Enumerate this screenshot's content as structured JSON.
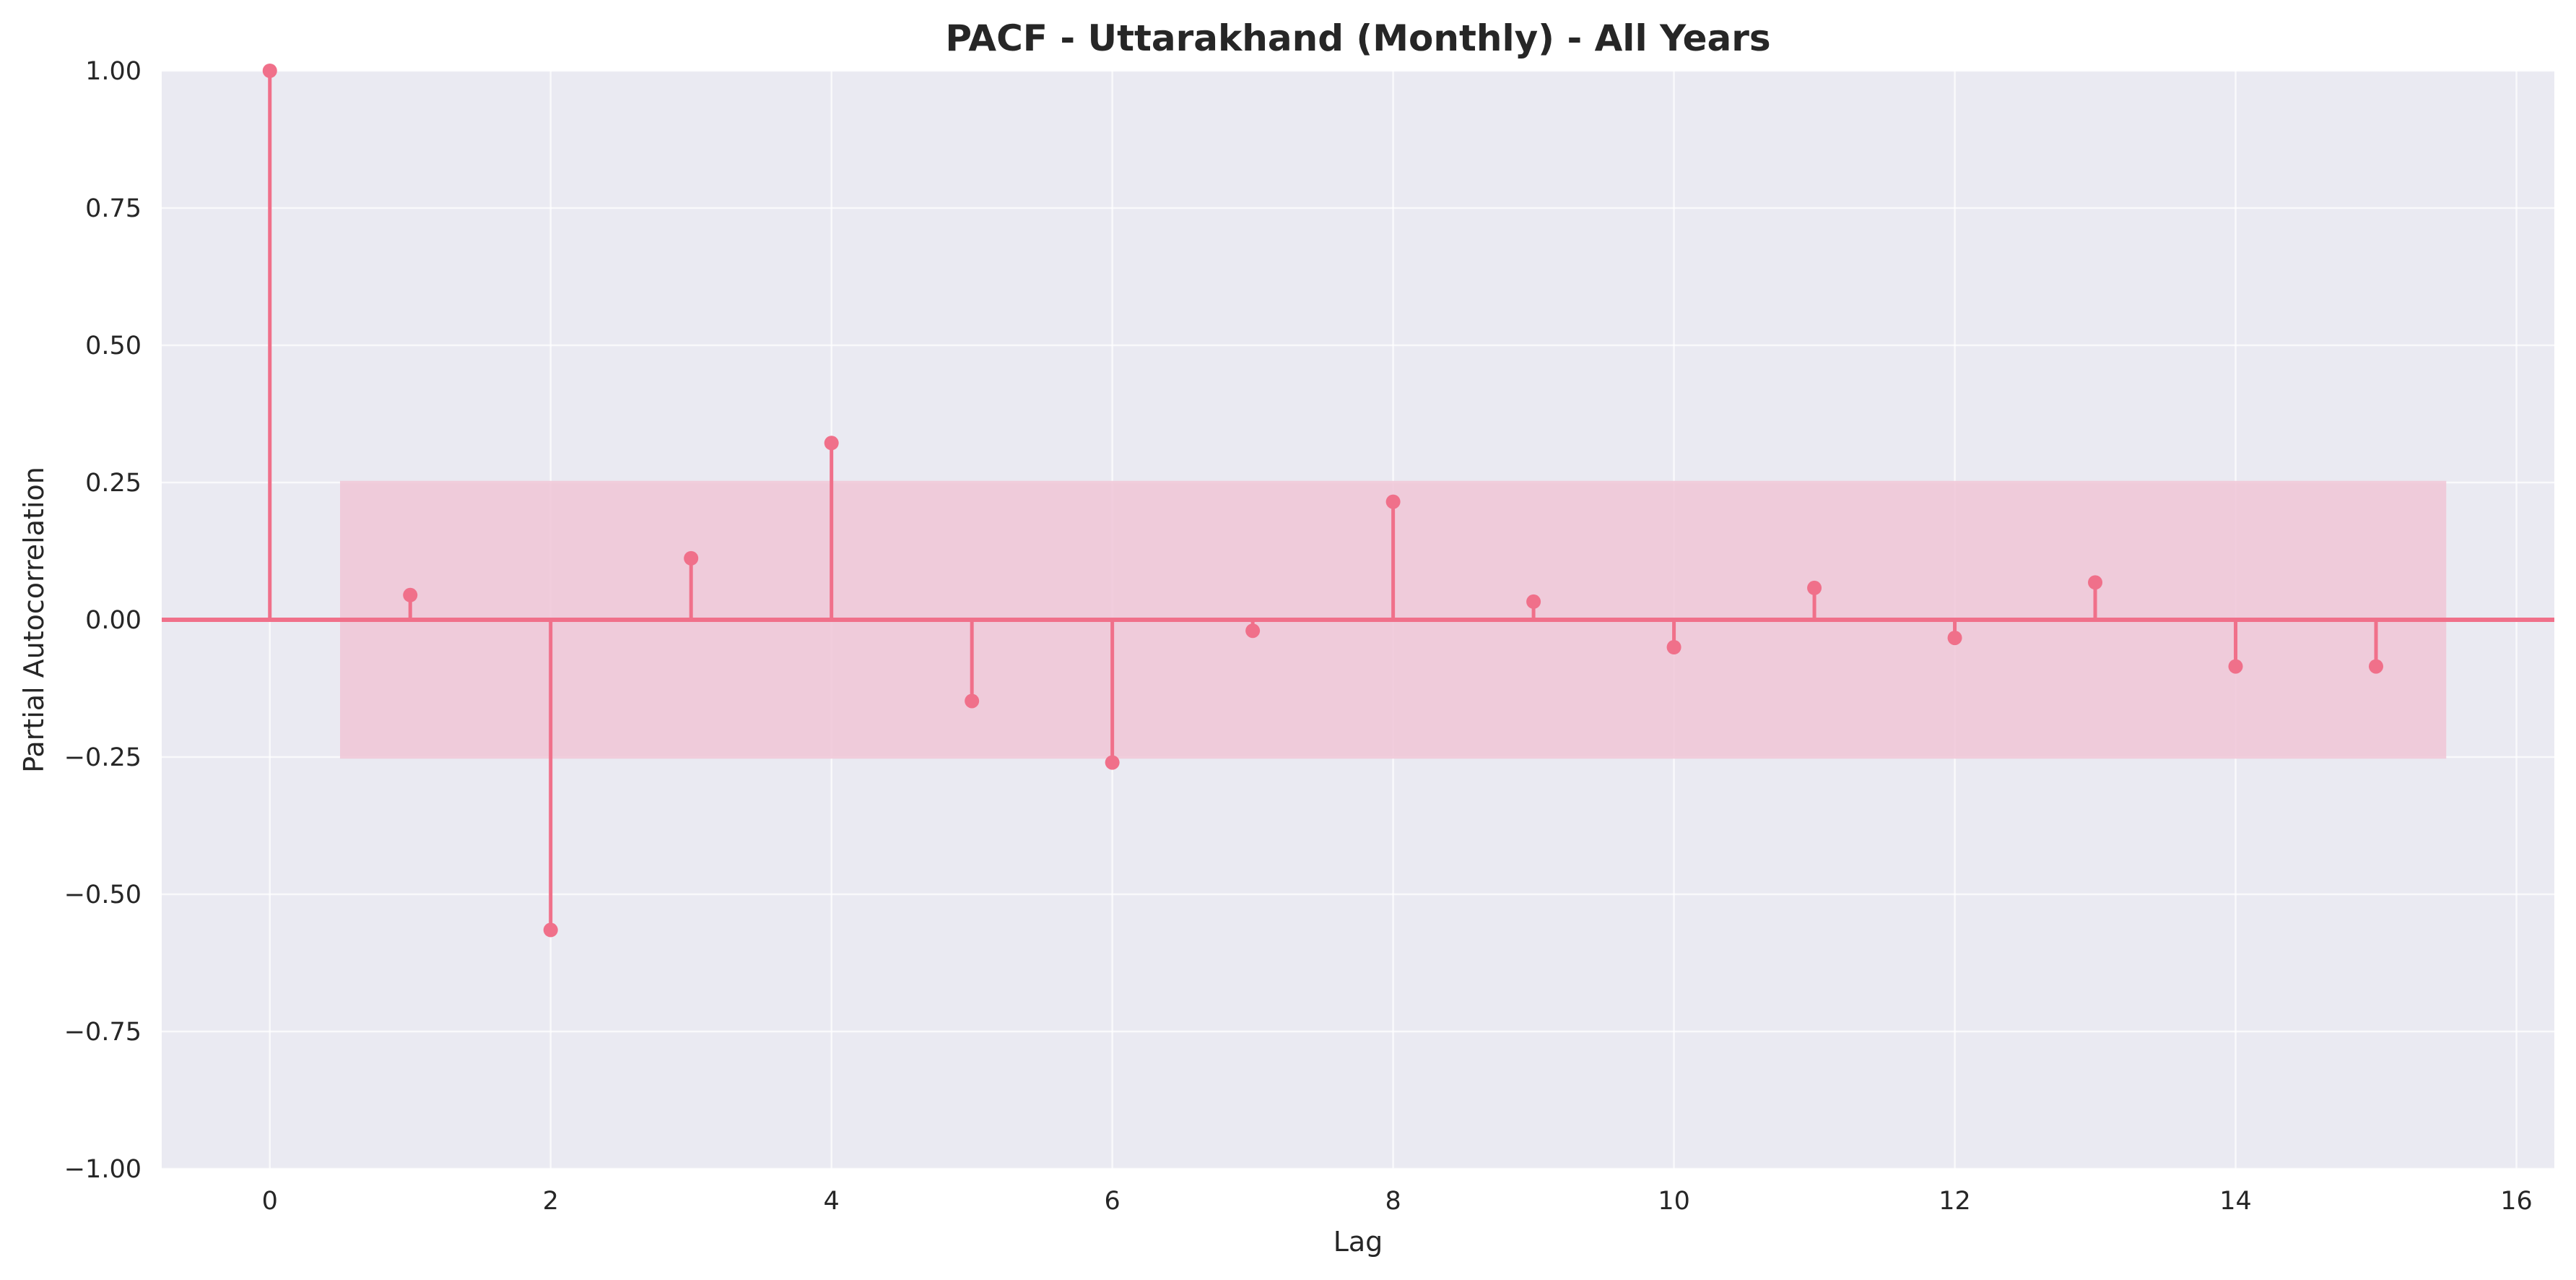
{
  "chart_data": {
    "type": "stem",
    "title": "PACF - Uttarakhand (Monthly) - All Years",
    "xlabel": "Lag",
    "ylabel": "Partial Autocorrelation",
    "xlim": [
      -0.77,
      16.27
    ],
    "ylim": [
      -1.0,
      1.0
    ],
    "x_ticks": [
      0,
      2,
      4,
      6,
      8,
      10,
      12,
      14,
      16
    ],
    "x_tick_labels": [
      "0",
      "2",
      "4",
      "6",
      "8",
      "10",
      "12",
      "14",
      "16"
    ],
    "y_ticks": [
      1.0,
      0.75,
      0.5,
      0.25,
      0.0,
      -0.25,
      -0.5,
      -0.75,
      -1.0
    ],
    "y_tick_labels": [
      "1.00",
      "0.75",
      "0.50",
      "0.25",
      "0.00",
      "−0.25",
      "−0.50",
      "−0.75",
      "−1.00"
    ],
    "grid": true,
    "lags": [
      0,
      1,
      2,
      3,
      4,
      5,
      6,
      7,
      8,
      9,
      10,
      11,
      12,
      13,
      14,
      15
    ],
    "values": [
      1.0,
      0.045,
      -0.565,
      0.112,
      0.322,
      -0.148,
      -0.26,
      -0.02,
      0.215,
      0.033,
      -0.05,
      0.058,
      -0.033,
      0.068,
      -0.085,
      -0.085
    ],
    "confidence_interval": {
      "lower": -0.253,
      "upper": 0.253,
      "x_start": 0.5,
      "x_end": 15.5
    },
    "colors": {
      "stem": "#f0708a",
      "marker": "#f0708a",
      "zero_line": "#f0708a",
      "band": "#f0c6d6",
      "plot_background": "#eaeaf2",
      "grid": "#ffffff"
    }
  }
}
